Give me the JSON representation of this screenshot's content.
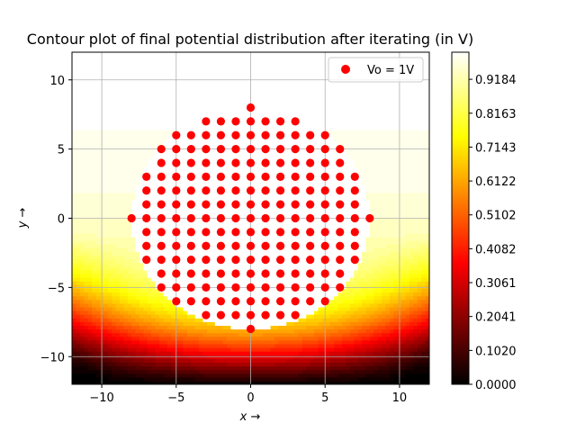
{
  "chart_data": {
    "type": "contour+scatter",
    "title": "Contour plot of final potential distribution after iterating (in V)",
    "xlabel": "x →",
    "ylabel": "y →",
    "xlim": [
      -12,
      12
    ],
    "ylim": [
      -12,
      12
    ],
    "xticks": [
      -10,
      -5,
      0,
      5,
      10
    ],
    "yticks": [
      -10,
      -5,
      0,
      5,
      10
    ],
    "grid": true,
    "legend": {
      "placement": "top-right",
      "entries": [
        {
          "label": "Vo = 1V",
          "color": "#ff0000"
        }
      ]
    },
    "colormap": "hot",
    "colorbar_ticks": [
      "0.0000",
      "0.1020",
      "0.2041",
      "0.3061",
      "0.4082",
      "0.5102",
      "0.6122",
      "0.7143",
      "0.8163",
      "0.9184"
    ],
    "colorbar_range": [
      0,
      1
    ],
    "electrode": {
      "center": [
        0,
        0
      ],
      "radius": 8,
      "potential": 1
    },
    "bottom_boundary": {
      "y": -12,
      "potential": 0
    },
    "scatter": {
      "name": "Vo = 1V",
      "color": "#ff0000",
      "rows": [
        {
          "y": 8,
          "x": [
            0
          ]
        },
        {
          "y": 7,
          "x": [
            -3,
            -2,
            -1,
            0,
            1,
            2,
            3
          ]
        },
        {
          "y": 6,
          "x": [
            -5,
            -4,
            -3,
            -2,
            -1,
            0,
            1,
            2,
            3,
            4,
            5
          ]
        },
        {
          "y": 5,
          "x": [
            -6,
            -5,
            -4,
            -3,
            -2,
            -1,
            0,
            1,
            2,
            3,
            4,
            5,
            6
          ]
        },
        {
          "y": 4,
          "x": [
            -6,
            -5,
            -4,
            -3,
            -2,
            -1,
            0,
            1,
            2,
            3,
            4,
            5,
            6
          ]
        },
        {
          "y": 3,
          "x": [
            -7,
            -6,
            -5,
            -4,
            -3,
            -2,
            -1,
            0,
            1,
            2,
            3,
            4,
            5,
            6,
            7
          ]
        },
        {
          "y": 2,
          "x": [
            -7,
            -6,
            -5,
            -4,
            -3,
            -2,
            -1,
            0,
            1,
            2,
            3,
            4,
            5,
            6,
            7
          ]
        },
        {
          "y": 1,
          "x": [
            -7,
            -6,
            -5,
            -4,
            -3,
            -2,
            -1,
            0,
            1,
            2,
            3,
            4,
            5,
            6,
            7
          ]
        },
        {
          "y": 0,
          "x": [
            -8,
            -7,
            -6,
            -5,
            -4,
            -3,
            -2,
            -1,
            0,
            1,
            2,
            3,
            4,
            5,
            6,
            7,
            8
          ]
        },
        {
          "y": -1,
          "x": [
            -7,
            -6,
            -5,
            -4,
            -3,
            -2,
            -1,
            0,
            1,
            2,
            3,
            4,
            5,
            6,
            7
          ]
        },
        {
          "y": -2,
          "x": [
            -7,
            -6,
            -5,
            -4,
            -3,
            -2,
            -1,
            0,
            1,
            2,
            3,
            4,
            5,
            6,
            7
          ]
        },
        {
          "y": -3,
          "x": [
            -7,
            -6,
            -5,
            -4,
            -3,
            -2,
            -1,
            0,
            1,
            2,
            3,
            4,
            5,
            6,
            7
          ]
        },
        {
          "y": -4,
          "x": [
            -6,
            -5,
            -4,
            -3,
            -2,
            -1,
            0,
            1,
            2,
            3,
            4,
            5,
            6
          ]
        },
        {
          "y": -5,
          "x": [
            -6,
            -5,
            -4,
            -3,
            -2,
            -1,
            0,
            1,
            2,
            3,
            4,
            5,
            6
          ]
        },
        {
          "y": -6,
          "x": [
            -5,
            -4,
            -3,
            -2,
            -1,
            0,
            1,
            2,
            3,
            4,
            5
          ]
        },
        {
          "y": -7,
          "x": [
            -3,
            -2,
            -1,
            0,
            1,
            2,
            3
          ]
        },
        {
          "y": -8,
          "x": [
            0
          ]
        }
      ]
    }
  }
}
